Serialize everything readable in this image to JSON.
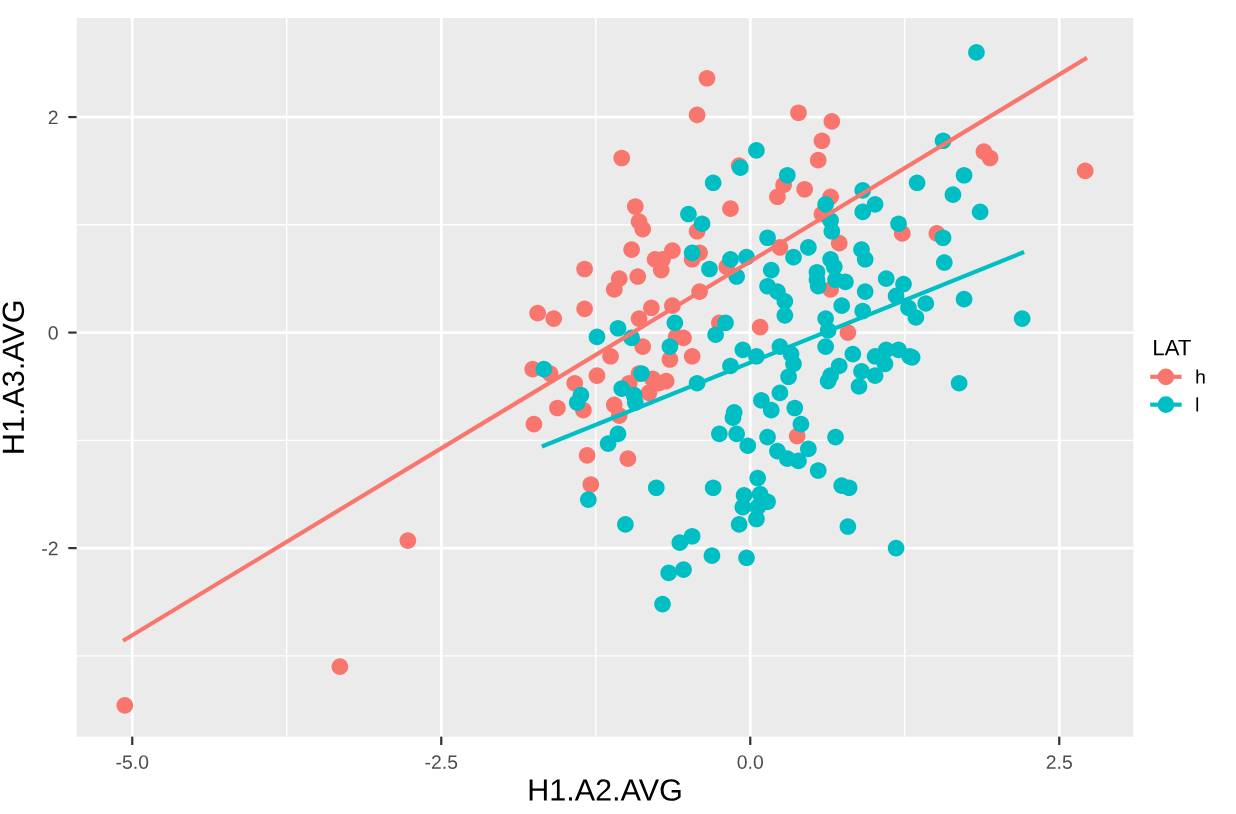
{
  "chart_data": {
    "type": "scatter",
    "xlabel": "H1.A2.AVG",
    "ylabel": "H1.A3.AVG",
    "legend_title": "LAT",
    "legend": "right",
    "grid": true,
    "xlim": [
      -5.45,
      3.1
    ],
    "ylim": [
      -3.75,
      2.92
    ],
    "xticks": [
      {
        "value": -5.0,
        "label": "-5.0"
      },
      {
        "value": -3.75,
        "label": null
      },
      -2.5,
      {
        "value": -1.25,
        "label": null
      },
      {
        "value": 0.0,
        "label": "0.0"
      },
      {
        "value": 1.25,
        "label": null
      },
      2.5
    ],
    "yticks": [
      {
        "value": -3,
        "label": null
      },
      -2,
      {
        "value": -1,
        "label": null
      },
      0,
      {
        "value": 1,
        "label": null
      },
      2
    ],
    "series": [
      {
        "name": "h",
        "color": "#f8766d",
        "marker": "circle",
        "x": [
          -5.06,
          -3.32,
          -2.77,
          -1.76,
          -1.72,
          -1.59,
          -1.75,
          -1.56,
          -1.62,
          -1.34,
          -1.34,
          -1.04,
          -0.93,
          -0.9,
          -0.87,
          -0.96,
          -0.91,
          -1.06,
          -1.1,
          -0.9,
          -1.13,
          -1.24,
          -1.42,
          -1.35,
          -1.1,
          -1.06,
          -0.98,
          -1.32,
          -1.29,
          -0.99,
          -0.87,
          -0.35,
          -0.43,
          -0.77,
          -0.71,
          -0.72,
          -0.63,
          -0.8,
          -0.63,
          -0.41,
          -0.47,
          -0.43,
          -0.19,
          -0.16,
          -0.09,
          -0.41,
          -0.25,
          0.08,
          0.24,
          0.22,
          0.27,
          0.44,
          0.39,
          0.55,
          0.58,
          0.66,
          0.65,
          0.58,
          0.72,
          0.65,
          0.79,
          1.23,
          1.51,
          1.89,
          1.94,
          2.71,
          -0.6,
          -0.54,
          -0.79,
          -0.65,
          -0.74,
          -0.9,
          -0.68,
          -0.82,
          -0.47,
          0.38
        ],
        "values": [
          -3.46,
          -3.1,
          -1.93,
          -0.34,
          0.18,
          0.13,
          -0.85,
          -0.7,
          -0.38,
          0.59,
          0.22,
          1.62,
          1.17,
          1.03,
          0.96,
          0.77,
          0.52,
          0.5,
          0.4,
          0.13,
          -0.22,
          -0.4,
          -0.47,
          -0.72,
          -0.67,
          -0.77,
          -0.47,
          -1.14,
          -1.41,
          -1.17,
          -0.13,
          2.36,
          2.02,
          0.68,
          0.68,
          0.58,
          0.76,
          0.23,
          0.25,
          0.74,
          0.68,
          0.94,
          0.61,
          1.15,
          1.55,
          0.38,
          0.09,
          0.05,
          0.79,
          1.26,
          1.37,
          1.33,
          2.04,
          1.6,
          1.78,
          1.96,
          1.26,
          1.1,
          0.83,
          0.4,
          0.0,
          0.92,
          0.92,
          1.68,
          1.62,
          1.5,
          -0.04,
          -0.05,
          -0.43,
          -0.25,
          -0.47,
          -0.38,
          -0.45,
          -0.56,
          -0.22,
          -0.96
        ]
      },
      {
        "name": "l",
        "color": "#00bfc4",
        "marker": "circle",
        "x": [
          1.83,
          1.56,
          0.05,
          -0.08,
          -0.3,
          0.3,
          0.91,
          1.35,
          1.73,
          1.64,
          1.86,
          1.01,
          0.91,
          0.61,
          0.65,
          -0.5,
          -0.39,
          -0.47,
          -0.33,
          -0.16,
          -0.03,
          -0.11,
          0.14,
          0.17,
          0.35,
          0.47,
          0.66,
          0.9,
          0.93,
          0.65,
          0.68,
          0.54,
          0.54,
          0.55,
          0.69,
          0.77,
          0.14,
          0.22,
          0.28,
          0.28,
          1.1,
          1.2,
          1.24,
          1.18,
          1.56,
          1.57,
          0.93,
          0.74,
          0.61,
          0.91,
          1.28,
          1.42,
          1.34,
          1.73,
          2.2,
          0.63,
          0.61,
          -0.06,
          -0.2,
          -0.28,
          -0.61,
          -1.07,
          -1.24,
          -0.96,
          -0.65,
          0.05,
          0.33,
          0.35,
          0.24,
          1.01,
          1.1,
          1.2,
          1.29,
          0.83,
          1.69,
          1.31,
          1.09,
          1.01,
          0.88,
          0.9,
          0.72,
          0.65,
          0.63,
          0.69,
          0.74,
          0.8,
          0.79,
          1.18,
          0.55,
          0.47,
          0.39,
          0.41,
          0.36,
          0.3,
          0.22,
          0.24,
          0.17,
          0.09,
          0.14,
          0.31,
          0.06,
          0.08,
          0.14,
          0.06,
          0.05,
          -0.05,
          -0.06,
          -0.02,
          -0.03,
          -0.09,
          -0.11,
          -0.14,
          -0.13,
          -0.25,
          -0.3,
          -0.31,
          -0.47,
          -0.57,
          -0.54,
          -0.66,
          -0.71,
          -0.76,
          -1.01,
          -1.15,
          -1.07,
          -0.43,
          -0.16,
          -1.31,
          -0.93,
          -0.88,
          -1.04,
          -1.67,
          -1.37,
          -1.4,
          -0.94
        ],
        "values": [
          2.6,
          1.78,
          1.69,
          1.53,
          1.39,
          1.46,
          1.32,
          1.39,
          1.46,
          1.28,
          1.12,
          1.19,
          1.12,
          1.19,
          1.04,
          1.1,
          1.01,
          0.74,
          0.59,
          0.68,
          0.7,
          0.52,
          0.88,
          0.58,
          0.7,
          0.79,
          0.94,
          0.77,
          0.68,
          0.68,
          0.61,
          0.56,
          0.49,
          0.43,
          0.49,
          0.47,
          0.43,
          0.38,
          0.29,
          0.16,
          0.5,
          1.01,
          0.45,
          0.34,
          0.88,
          0.65,
          0.38,
          0.25,
          0.13,
          0.2,
          0.23,
          0.27,
          0.14,
          0.31,
          0.13,
          0.02,
          -0.13,
          -0.16,
          0.09,
          -0.02,
          0.09,
          0.04,
          -0.04,
          -0.05,
          -0.13,
          -0.22,
          -0.2,
          -0.29,
          -0.13,
          -0.22,
          -0.16,
          -0.16,
          -0.22,
          -0.2,
          -0.47,
          -0.23,
          -0.29,
          -0.4,
          -0.5,
          -0.36,
          -0.31,
          -0.4,
          -0.45,
          -0.97,
          -1.42,
          -1.44,
          -1.8,
          -2.0,
          -1.28,
          -1.08,
          -1.19,
          -0.85,
          -0.7,
          -1.17,
          -1.1,
          -0.56,
          -0.72,
          -0.63,
          -0.97,
          -0.41,
          -1.35,
          -1.5,
          -1.57,
          -1.62,
          -1.73,
          -1.51,
          -1.62,
          -1.05,
          -2.09,
          -1.78,
          -0.94,
          -0.79,
          -0.74,
          -0.94,
          -1.44,
          -2.07,
          -1.89,
          -1.95,
          -2.2,
          -2.23,
          -2.52,
          -1.44,
          -1.78,
          -1.03,
          -0.94,
          -0.47,
          -0.31,
          -1.55,
          -0.65,
          -0.38,
          -0.52,
          -0.34,
          -0.58,
          -0.65,
          -0.58
        ]
      },
      {
        "type": "line",
        "color": "#f8766d",
        "x": [
          -5.06,
          2.71
        ],
        "values": [
          -2.85,
          2.54
        ]
      },
      {
        "type": "line",
        "color": "#00bfc4",
        "x": [
          -1.67,
          2.2
        ],
        "values": [
          -1.05,
          0.74
        ]
      }
    ]
  }
}
